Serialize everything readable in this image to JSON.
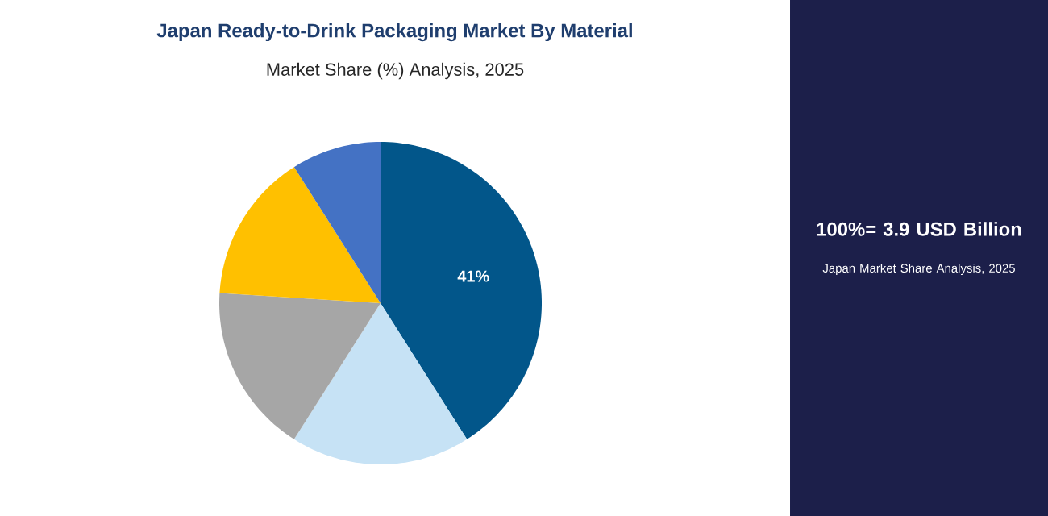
{
  "chart_data": {
    "type": "pie",
    "title": "Japan Ready-to-Drink Packaging Market By Material",
    "subtitle": "Market Share (%) Analysis, 2025",
    "categories": [
      null,
      null,
      null,
      null,
      null
    ],
    "values": [
      41,
      18,
      17,
      15,
      9
    ],
    "colors": [
      "#02568a",
      "#c6e2f5",
      "#a6a6a6",
      "#ffc000",
      "#4472c4"
    ],
    "value_labels": [
      "41%",
      null,
      null,
      null,
      null
    ],
    "annotations": [
      "100%= 3.9 USD Billion",
      "Japan Market Share Analysis, 2025"
    ]
  }
}
